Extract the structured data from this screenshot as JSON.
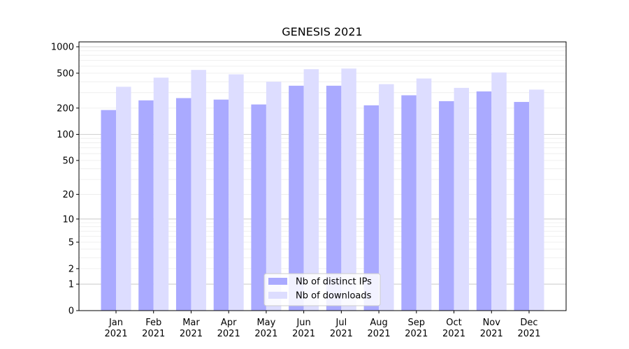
{
  "chart_data": {
    "type": "bar",
    "title": "GENESIS 2021",
    "xlabel": "",
    "ylabel": "",
    "y_scale": "log (0 shown at baseline)",
    "ylim": [
      0,
      1200
    ],
    "y_ticks": [
      0,
      1,
      2,
      5,
      10,
      20,
      50,
      100,
      200,
      500,
      1000
    ],
    "grid": "horizontal",
    "legend_position": "bottom-center",
    "categories": [
      {
        "month": "Jan",
        "year": "2021"
      },
      {
        "month": "Feb",
        "year": "2021"
      },
      {
        "month": "Mar",
        "year": "2021"
      },
      {
        "month": "Apr",
        "year": "2021"
      },
      {
        "month": "May",
        "year": "2021"
      },
      {
        "month": "Jun",
        "year": "2021"
      },
      {
        "month": "Jul",
        "year": "2021"
      },
      {
        "month": "Aug",
        "year": "2021"
      },
      {
        "month": "Sep",
        "year": "2021"
      },
      {
        "month": "Oct",
        "year": "2021"
      },
      {
        "month": "Nov",
        "year": "2021"
      },
      {
        "month": "Dec",
        "year": "2021"
      }
    ],
    "series": [
      {
        "name": "Nb of distinct IPs",
        "color": "#aaaaff",
        "values": [
          190,
          245,
          260,
          250,
          220,
          360,
          360,
          215,
          280,
          240,
          310,
          235
        ]
      },
      {
        "name": "Nb of downloads",
        "color": "#ddddff",
        "values": [
          350,
          445,
          545,
          485,
          400,
          555,
          565,
          375,
          435,
          340,
          510,
          325
        ]
      }
    ]
  }
}
